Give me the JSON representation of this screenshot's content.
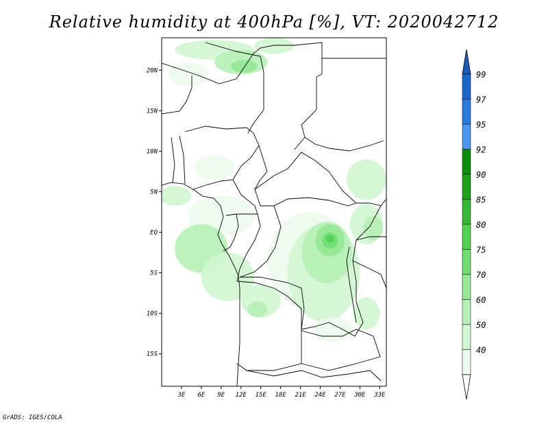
{
  "title": "Relative humidity at 400hPa [%], VT: 2020042712",
  "credit": "GrADS: IGES/COLA",
  "map": {
    "lat_range": [
      -19,
      24
    ],
    "lon_range": [
      0,
      34
    ],
    "lat_ticks": [
      {
        "value": 20,
        "label": "20N"
      },
      {
        "value": 15,
        "label": "15N"
      },
      {
        "value": 10,
        "label": "10N"
      },
      {
        "value": 5,
        "label": "5N"
      },
      {
        "value": 0,
        "label": "EQ"
      },
      {
        "value": -5,
        "label": "5S"
      },
      {
        "value": -10,
        "label": "10S"
      },
      {
        "value": -15,
        "label": "15S"
      }
    ],
    "lon_ticks": [
      {
        "value": 3,
        "label": "3E"
      },
      {
        "value": 6,
        "label": "6E"
      },
      {
        "value": 9,
        "label": "9E"
      },
      {
        "value": 12,
        "label": "12E"
      },
      {
        "value": 15,
        "label": "15E"
      },
      {
        "value": 18,
        "label": "18E"
      },
      {
        "value": 21,
        "label": "21E"
      },
      {
        "value": 24,
        "label": "24E"
      },
      {
        "value": 27,
        "label": "27E"
      },
      {
        "value": 30,
        "label": "30E"
      },
      {
        "value": 33,
        "label": "33E"
      }
    ]
  },
  "colorbar": {
    "levels": [
      {
        "label": "99",
        "color": "#1a66cc"
      },
      {
        "label": "97",
        "color": "#2a7ae0"
      },
      {
        "label": "95",
        "color": "#4a98ee"
      },
      {
        "label": "92",
        "color": "#0c8c0c"
      },
      {
        "label": "90",
        "color": "#1ea01e"
      },
      {
        "label": "85",
        "color": "#36b836"
      },
      {
        "label": "80",
        "color": "#52d052"
      },
      {
        "label": "75",
        "color": "#70de70"
      },
      {
        "label": "70",
        "color": "#96e896"
      },
      {
        "label": "60",
        "color": "#b6f0b6"
      },
      {
        "label": "50",
        "color": "#d2f6d2"
      },
      {
        "label": "40",
        "color": "#ecfbec"
      }
    ],
    "top_arrow_color": "#1a5cb8",
    "bottom_arrow_color": "#ffffff"
  },
  "humidity_regions": [
    {
      "lat": 22.5,
      "lon": 8,
      "level": "50",
      "rlat": 1.2,
      "rlon": 6
    },
    {
      "lat": 21,
      "lon": 12,
      "level": "60",
      "rlat": 1.5,
      "rlon": 4
    },
    {
      "lat": 20.5,
      "lon": 12.5,
      "level": "70",
      "rlat": 0.8,
      "rlon": 2
    },
    {
      "lat": 19.5,
      "lon": 4,
      "level": "40",
      "rlat": 1.5,
      "rlon": 3
    },
    {
      "lat": 23,
      "lon": 17,
      "level": "50",
      "rlat": 1,
      "rlon": 3
    },
    {
      "lat": 8,
      "lon": 8,
      "level": "40",
      "rlat": 1.5,
      "rlon": 3
    },
    {
      "lat": 6.5,
      "lon": 31,
      "level": "50",
      "rlat": 2.5,
      "rlon": 3
    },
    {
      "lat": 4.5,
      "lon": 2,
      "level": "50",
      "rlat": 1.2,
      "rlon": 2.5
    },
    {
      "lat": 2,
      "lon": 9,
      "level": "40",
      "rlat": 2.5,
      "rlon": 5
    },
    {
      "lat": -2,
      "lon": 6,
      "level": "60",
      "rlat": 3,
      "rlon": 4
    },
    {
      "lat": -5.5,
      "lon": 10,
      "level": "50",
      "rlat": 3,
      "rlon": 4
    },
    {
      "lat": -3.5,
      "lon": 22.5,
      "level": "40",
      "rlat": 6,
      "rlon": 6.5
    },
    {
      "lat": -5,
      "lon": 24.5,
      "level": "50",
      "rlat": 6,
      "rlon": 5.5
    },
    {
      "lat": -2.5,
      "lon": 25,
      "level": "60",
      "rlat": 3.8,
      "rlon": 3.8
    },
    {
      "lat": -1,
      "lon": 25.5,
      "level": "70",
      "rlat": 2,
      "rlon": 2.2
    },
    {
      "lat": -1,
      "lon": 25.5,
      "level": "75",
      "rlat": 1,
      "rlon": 1.2
    },
    {
      "lat": -0.8,
      "lon": 25.5,
      "level": "80",
      "rlat": 0.5,
      "rlon": 0.6
    },
    {
      "lat": -8.5,
      "lon": 15,
      "level": "50",
      "rlat": 2,
      "rlon": 3
    },
    {
      "lat": -9.5,
      "lon": 14.5,
      "level": "60",
      "rlat": 1,
      "rlon": 1.5
    },
    {
      "lat": 1,
      "lon": 31,
      "level": "50",
      "rlat": 2.5,
      "rlon": 2.5
    },
    {
      "lat": 0.5,
      "lon": 32,
      "level": "60",
      "rlat": 1.5,
      "rlon": 1.5
    },
    {
      "lat": -10,
      "lon": 31,
      "level": "50",
      "rlat": 2,
      "rlon": 2
    },
    {
      "lat": -12,
      "lon": 26,
      "level": "40",
      "rlat": 1.5,
      "rlon": 3
    }
  ]
}
